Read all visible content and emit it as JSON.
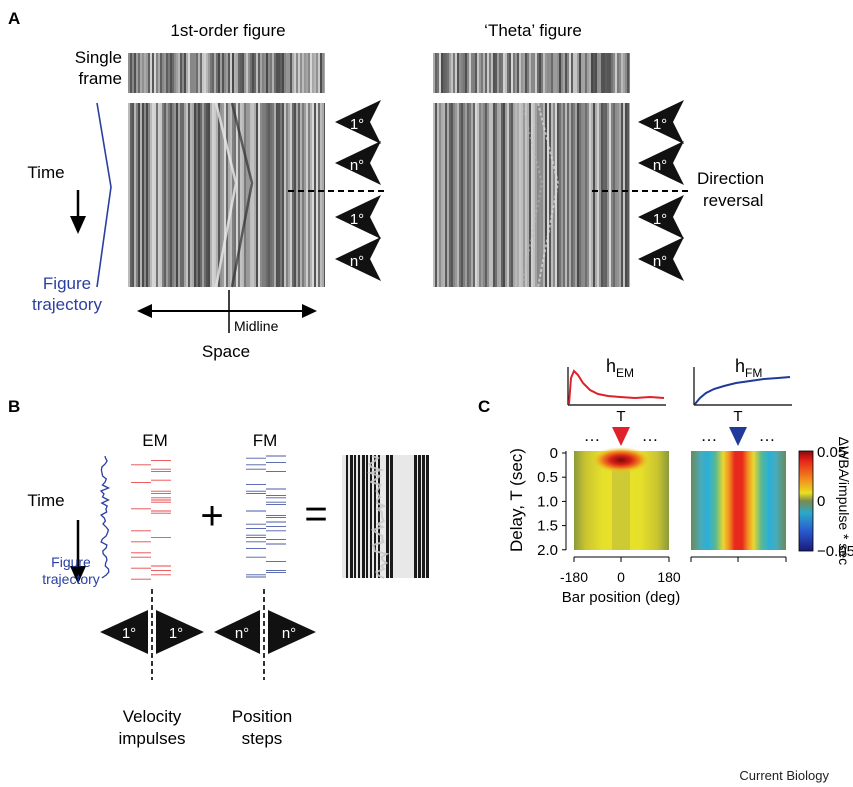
{
  "panel_a": {
    "label": "A",
    "left_title": "1st-order figure",
    "right_title": "‘Theta’ figure",
    "single_frame": [
      "Single",
      "frame"
    ],
    "time": "Time",
    "figure_trajectory": [
      "Figure",
      "trajectory"
    ],
    "midline": "Midline",
    "space": "Space",
    "direction_reversal": [
      "Direction",
      "reversal"
    ],
    "arrow_labels": [
      "1°",
      "n°",
      "1°",
      "n°"
    ],
    "trajectory_color": "#2b3fa0"
  },
  "panel_b": {
    "label": "B",
    "time": "Time",
    "figure_trajectory": [
      "Figure",
      "trajectory"
    ],
    "em": "EM",
    "fm": "FM",
    "plus": "+",
    "equals": "=",
    "em_arrows": [
      "1°",
      "1°"
    ],
    "fm_arrows": [
      "n°",
      "n°"
    ],
    "velocity": [
      "Velocity",
      "impulses"
    ],
    "position": [
      "Position",
      "steps"
    ],
    "em_color": "#e8474a",
    "fm_color": "#4a5aa8"
  },
  "panel_c": {
    "label": "C",
    "h_em": {
      "base": "h",
      "sub": "EM"
    },
    "h_fm": {
      "base": "h",
      "sub": "FM"
    },
    "t_label": "T",
    "dots": "…",
    "ylabel": "Delay, T (sec)",
    "yticks": [
      "0",
      "0.5",
      "1.0",
      "1.5",
      "2.0"
    ],
    "xticks": [
      "-180",
      "0",
      "180"
    ],
    "xlabel": "Bar position (deg)",
    "cbar_ticks": [
      "0.05",
      "0",
      "−0.05"
    ],
    "cbar_label": "ΔWBA/impulse * sec",
    "em_color": "#e0202a",
    "fm_color": "#1f3a9a"
  },
  "chart_data": {
    "type": "heatmap",
    "xlabel": "Bar position (deg)",
    "ylabel": "Delay, T (sec)",
    "xlim": [
      -180,
      180
    ],
    "ylim": [
      0,
      2.0
    ],
    "colorbar": {
      "label": "ΔWBA/impulse * sec",
      "range": [
        -0.05,
        0.05
      ]
    }
  },
  "footer": "Current Biology"
}
